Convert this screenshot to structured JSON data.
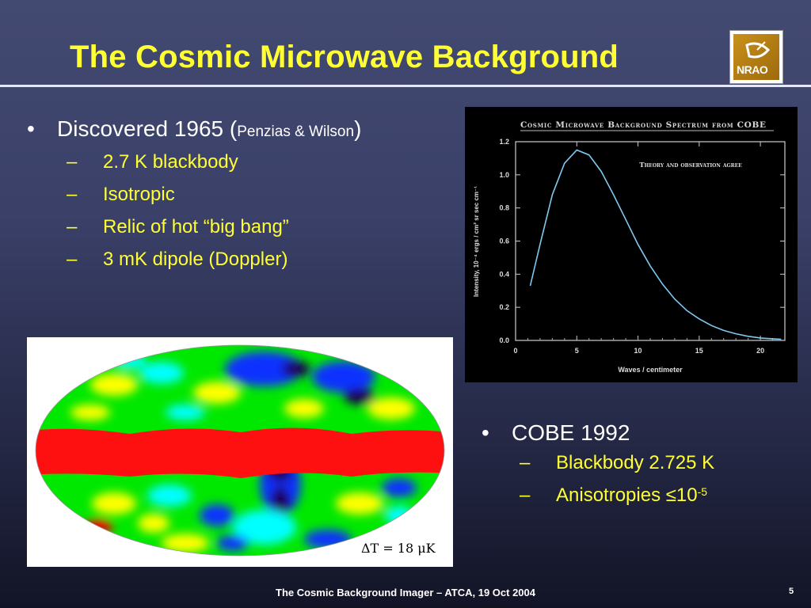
{
  "slide": {
    "title": "The Cosmic Microwave Background",
    "logo_text": "NRAO",
    "footer": "The Cosmic Background Imager – ATCA, 19 Oct 2004",
    "page_number": "5"
  },
  "bullets_top": {
    "main_prefix": "Discovered 1965 (",
    "main_small": "Penzias & Wilson",
    "main_suffix": ")",
    "items": [
      "2.7 K blackbody",
      "Isotropic",
      "Relic of hot “big bang”",
      "3 mK dipole (Doppler)"
    ]
  },
  "bullets_bottom": {
    "main": "COBE 1992",
    "item1": "Blackbody 2.725 K",
    "item2_prefix": "Anisotropies ≤10",
    "item2_sup": "-5"
  },
  "skymap": {
    "label": "ΔT = 18 μK",
    "colors": [
      "#ff0000",
      "#ffff00",
      "#00ff00",
      "#00ffff",
      "#1030ff",
      "#1a0050"
    ]
  },
  "chart_data": {
    "type": "line",
    "title": "Cosmic Microwave Background Spectrum from COBE",
    "annotation": "Theory and observation agree",
    "xlabel": "Waves / centimeter",
    "ylabel": "Intensity, 10⁻⁴ ergs / cm² sr sec cm⁻¹",
    "xlim": [
      0,
      22
    ],
    "ylim": [
      0,
      1.2
    ],
    "x_ticks": [
      0,
      5,
      10,
      15,
      20
    ],
    "y_ticks": [
      "0.0",
      "0.2",
      "0.4",
      "0.6",
      "0.8",
      "1.0",
      "1.2"
    ],
    "series": [
      {
        "color": "#7fc8f0",
        "x": [
          1.2,
          2,
          3,
          4,
          5,
          6,
          7,
          8,
          9,
          10,
          11,
          12,
          13,
          14,
          15,
          16,
          17,
          18,
          19,
          20,
          21,
          21.7
        ],
        "y": [
          0.33,
          0.58,
          0.88,
          1.07,
          1.15,
          1.12,
          1.02,
          0.88,
          0.73,
          0.58,
          0.45,
          0.34,
          0.25,
          0.18,
          0.13,
          0.09,
          0.06,
          0.04,
          0.025,
          0.015,
          0.01,
          0.007
        ]
      }
    ]
  }
}
